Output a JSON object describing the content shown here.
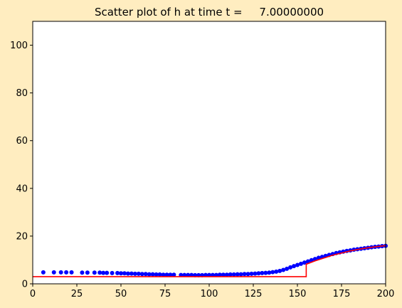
{
  "chart_data": {
    "type": "scatter",
    "title": "Scatter plot of h at time t =     7.00000000",
    "xlabel": "",
    "ylabel": "",
    "xlim": [
      0,
      200
    ],
    "ylim": [
      0,
      110
    ],
    "xticks": [
      0,
      25,
      50,
      75,
      100,
      125,
      150,
      175,
      200
    ],
    "yticks": [
      0,
      20,
      40,
      60,
      80,
      100
    ],
    "grid": false,
    "colors": {
      "background": "#ffedc0",
      "plot_area": "#ffffff",
      "scatter": "#0000ff",
      "line": "#ff0000"
    },
    "series": [
      {
        "kind": "scatter",
        "x": [
          6,
          12,
          16,
          19,
          22,
          28,
          31,
          35,
          38,
          40,
          42,
          45,
          48,
          50,
          52,
          54,
          56,
          58,
          60,
          62,
          64,
          66,
          68,
          70,
          72,
          74,
          76,
          78,
          80,
          84,
          86,
          88,
          90,
          92,
          94,
          96,
          98,
          100,
          102,
          104,
          106,
          108,
          110,
          112,
          114,
          116,
          118,
          120,
          122,
          124,
          126,
          128,
          130,
          132,
          134,
          136,
          138,
          140,
          142,
          144,
          146,
          148,
          150,
          152,
          154,
          156,
          158,
          160,
          162,
          164,
          166,
          168,
          170,
          172,
          174,
          176,
          178,
          180,
          182,
          184,
          186,
          188,
          190,
          192,
          194,
          196,
          198,
          200
        ],
        "y": [
          4.8,
          4.8,
          4.8,
          4.8,
          4.8,
          4.7,
          4.7,
          4.7,
          4.7,
          4.6,
          4.6,
          4.5,
          4.5,
          4.4,
          4.4,
          4.3,
          4.3,
          4.2,
          4.2,
          4.1,
          4.1,
          4.0,
          4.0,
          3.9,
          3.9,
          3.8,
          3.8,
          3.8,
          3.8,
          3.7,
          3.7,
          3.7,
          3.7,
          3.6,
          3.6,
          3.6,
          3.7,
          3.7,
          3.7,
          3.7,
          3.8,
          3.8,
          3.8,
          3.9,
          3.9,
          4.0,
          4.0,
          4.1,
          4.1,
          4.2,
          4.3,
          4.4,
          4.5,
          4.6,
          4.7,
          4.9,
          5.1,
          5.4,
          5.8,
          6.3,
          6.9,
          7.4,
          7.9,
          8.4,
          8.9,
          9.4,
          9.9,
          10.4,
          10.9,
          11.3,
          11.7,
          12.1,
          12.5,
          12.9,
          13.2,
          13.5,
          13.8,
          14.0,
          14.3,
          14.5,
          14.7,
          14.9,
          15.1,
          15.3,
          15.5,
          15.6,
          15.8,
          15.9
        ]
      },
      {
        "kind": "line",
        "x": [
          0,
          20,
          40,
          60,
          80,
          100,
          120,
          140,
          150,
          155,
          155,
          160,
          165,
          170,
          175,
          180,
          185,
          190,
          195,
          200
        ],
        "y": [
          3.0,
          3.0,
          3.0,
          3.0,
          3.0,
          3.0,
          3.0,
          3.0,
          3.0,
          3.0,
          8.2,
          9.6,
          10.8,
          12.0,
          12.9,
          13.8,
          14.5,
          15.1,
          15.6,
          16.0
        ]
      }
    ]
  }
}
